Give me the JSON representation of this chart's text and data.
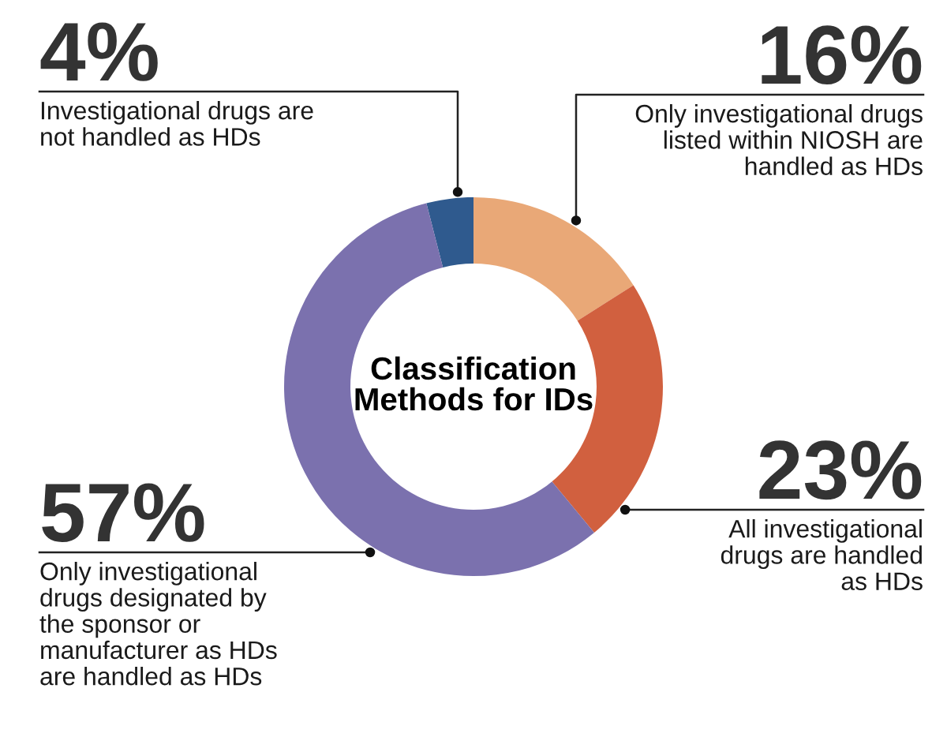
{
  "chart_data": {
    "type": "donut",
    "title": "Classification\nMethods for IDs",
    "categories": [
      "Investigational drugs are\nnot handled as HDs",
      "Only investigational drugs\nlisted within NIOSH are\nhandled as HDs",
      "All investigational\ndrugs are handled\nas HDs",
      "Only investigational\ndrugs designated by\nthe sponsor or\nmanufacturer as HDs\nare handled as HDs"
    ],
    "values": [
      4,
      16,
      23,
      57
    ],
    "value_labels": [
      "4%",
      "16%",
      "23%",
      "57%"
    ],
    "colors": [
      "#2f5a8e",
      "#e9a877",
      "#d1603f",
      "#7b71ae"
    ]
  }
}
